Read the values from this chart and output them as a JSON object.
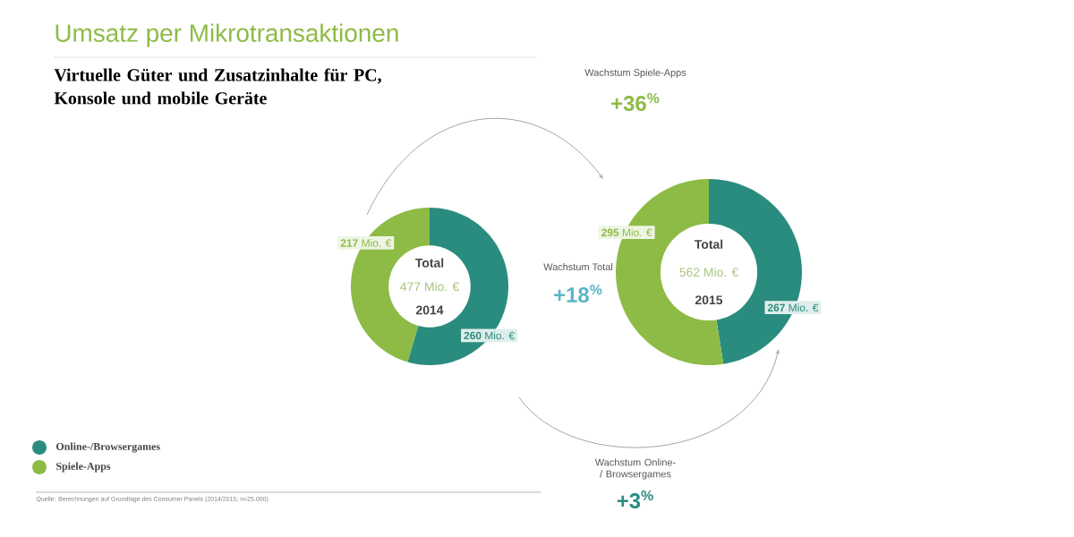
{
  "chart_data": [
    {
      "type": "donut",
      "title": "Umsatz per Mikrotransaktionen",
      "subtitle": "Virtuelle Güter und Zusatzinhalte für PC, Konsole und mobile Geräte",
      "categories": [
        "Online-/Browsergames",
        "Spiele-Apps"
      ],
      "values": [
        260,
        217
      ],
      "colors": [
        "#2a8c7e",
        "#8dbb46"
      ],
      "value_labels": [
        "**260** Mio. €",
        "**217** Mio. €"
      ],
      "annotations": [
        "Total",
        "477 Mio. €",
        "2014"
      ],
      "legend": "bottom left"
    },
    {
      "type": "donut",
      "categories": [
        null,
        null
      ],
      "values": [
        267,
        295
      ],
      "colors": [
        "#2a8c7e",
        "#8dbb46"
      ],
      "value_labels": [
        "**267** Mio. €",
        "**295** Mio. €"
      ],
      "annotations": [
        "Total",
        "562 Mio. €",
        "2015"
      ]
    },
    {
      "type": "other",
      "annotations": [
        "Wachstum Spiele-Apps",
        "+36$^{%}$",
        "Wachstum Total",
        "+18$^{%}$",
        "Wachstum Online-/ Browsergames",
        "+3$^{%}$",
        "Quelle: Berechnungen auf Grundlage des Consumer Panels (2014/2015; n=25.000)"
      ]
    }
  ]
}
